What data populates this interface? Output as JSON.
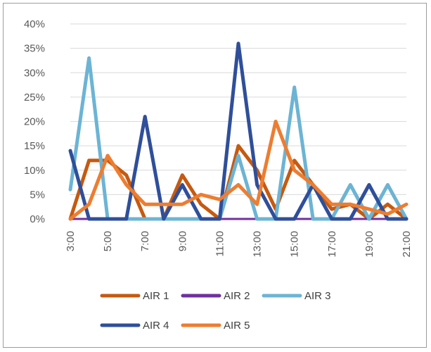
{
  "chart_data": {
    "type": "line",
    "title": "",
    "xlabel": "",
    "ylabel": "",
    "ylim": [
      0,
      0.4
    ],
    "ytick_labels": [
      "0%",
      "5%",
      "10%",
      "15%",
      "20%",
      "25%",
      "30%",
      "35%",
      "40%"
    ],
    "ytick_values": [
      0,
      0.05,
      0.1,
      0.15,
      0.2,
      0.25,
      0.3,
      0.35,
      0.4
    ],
    "categories": [
      "3:00",
      "4:00",
      "5:00",
      "6:00",
      "7:00",
      "8:00",
      "9:00",
      "10:00",
      "11:00",
      "12:00",
      "13:00",
      "14:00",
      "15:00",
      "16:00",
      "17:00",
      "18:00",
      "19:00",
      "20:00",
      "21:00"
    ],
    "xtick_labels_shown": [
      "3:00",
      "5:00",
      "7:00",
      "9:00",
      "11:00",
      "13:00",
      "15:00",
      "17:00",
      "19:00",
      "21:00"
    ],
    "grid": true,
    "legend_position": "bottom",
    "series": [
      {
        "name": "AIR 1",
        "color": "#c55a11",
        "width": 5,
        "values": [
          0.0,
          0.12,
          0.12,
          0.09,
          0.0,
          0.0,
          0.09,
          0.03,
          0.0,
          0.15,
          0.1,
          0.02,
          0.12,
          0.07,
          0.02,
          0.03,
          0.0,
          0.03,
          0.0
        ]
      },
      {
        "name": "AIR 2",
        "color": "#7030a0",
        "width": 3,
        "values": [
          0.0,
          0.0,
          0.0,
          0.0,
          0.0,
          0.0,
          0.0,
          0.0,
          0.0,
          0.0,
          0.0,
          0.0,
          0.0,
          0.0,
          0.0,
          0.0,
          0.0,
          0.0,
          0.0
        ]
      },
      {
        "name": "AIR 3",
        "color": "#6cb4d4",
        "width": 5,
        "values": [
          0.06,
          0.33,
          0.0,
          0.0,
          0.0,
          0.0,
          0.0,
          0.0,
          0.0,
          0.13,
          0.0,
          0.0,
          0.27,
          0.0,
          0.0,
          0.07,
          0.0,
          0.07,
          0.0
        ]
      },
      {
        "name": "AIR 4",
        "color": "#2f4f9a",
        "width": 5,
        "values": [
          0.14,
          0.0,
          0.0,
          0.0,
          0.21,
          0.0,
          0.07,
          0.0,
          0.0,
          0.36,
          0.07,
          0.0,
          0.0,
          0.07,
          0.0,
          0.0,
          0.07,
          0.0,
          0.0
        ]
      },
      {
        "name": "AIR 5",
        "color": "#ed7d31",
        "width": 5,
        "values": [
          0.0,
          0.03,
          0.13,
          0.07,
          0.03,
          0.03,
          0.03,
          0.05,
          0.04,
          0.07,
          0.03,
          0.2,
          0.1,
          0.07,
          0.03,
          0.03,
          0.02,
          0.01,
          0.03
        ]
      }
    ]
  }
}
